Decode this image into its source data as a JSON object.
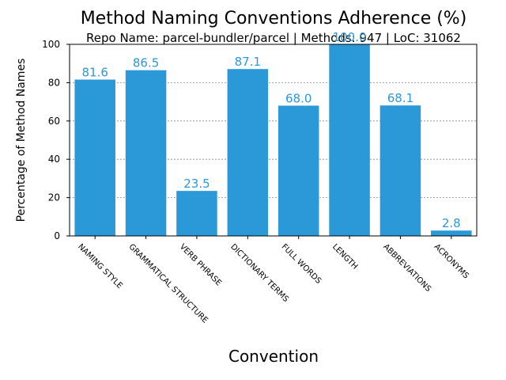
{
  "chart_data": {
    "type": "bar",
    "title": "Method Naming Conventions Adherence (%)",
    "subtitle": "Repo Name: parcel-bundler/parcel | Methods: 947 | LoC: 31062",
    "xlabel": "Convention",
    "ylabel": "Percentage of Method Names",
    "categories": [
      "NAMING STYLE",
      "GRAMMATICAL STRUCTURE",
      "VERB PHRASE",
      "DICTIONARY TERMS",
      "FULL WORDS",
      "LENGTH",
      "ABBREVIATIONS",
      "ACRONYMS"
    ],
    "values": [
      81.6,
      86.5,
      23.5,
      87.1,
      68.0,
      100.0,
      68.1,
      2.8
    ],
    "value_labels": [
      "81.6",
      "86.5",
      "23.5",
      "87.1",
      "68.0",
      "100.0",
      "68.1",
      "2.8"
    ],
    "ylim": [
      0,
      100
    ],
    "yticks": [
      0,
      20,
      40,
      60,
      80,
      100
    ],
    "grid": "horizontal dotted",
    "colors": {
      "bar": "#2b98d8",
      "label": "#2b98d8",
      "grid": "#888888",
      "axis": "#000000"
    }
  }
}
